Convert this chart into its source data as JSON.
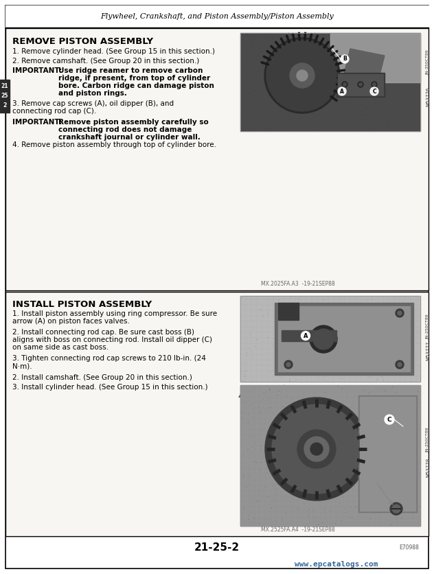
{
  "page_bg": "#ffffff",
  "outer_border_color": "#000000",
  "section_bg": "#f8f6f2",
  "header_text": "Flywheel, Crankshaft, and Piston Assembly/Piston Assembly",
  "sec1_title": "REMOVE PISTON ASSEMBLY",
  "sec2_title": "INSTALL PISTON ASSEMBLY",
  "footer_page": "21-25-2",
  "footer_url": "www.epcatalogs.com",
  "footer_code": "E70988",
  "watermark1": "MX.2025FA.A3  -19-21SEP88",
  "watermark2": "MX.2525FA.A4  -19-21SEP88",
  "sidebar1a": "JN-350CT89",
  "sidebar1b": "M53776",
  "sidebar2a": "JN-250CT89",
  "sidebar2b": "M53777",
  "sidebar3a": "JN-250CT89",
  "sidebar3b": "M53778",
  "tab_lines": [
    "21",
    "25",
    "2"
  ]
}
